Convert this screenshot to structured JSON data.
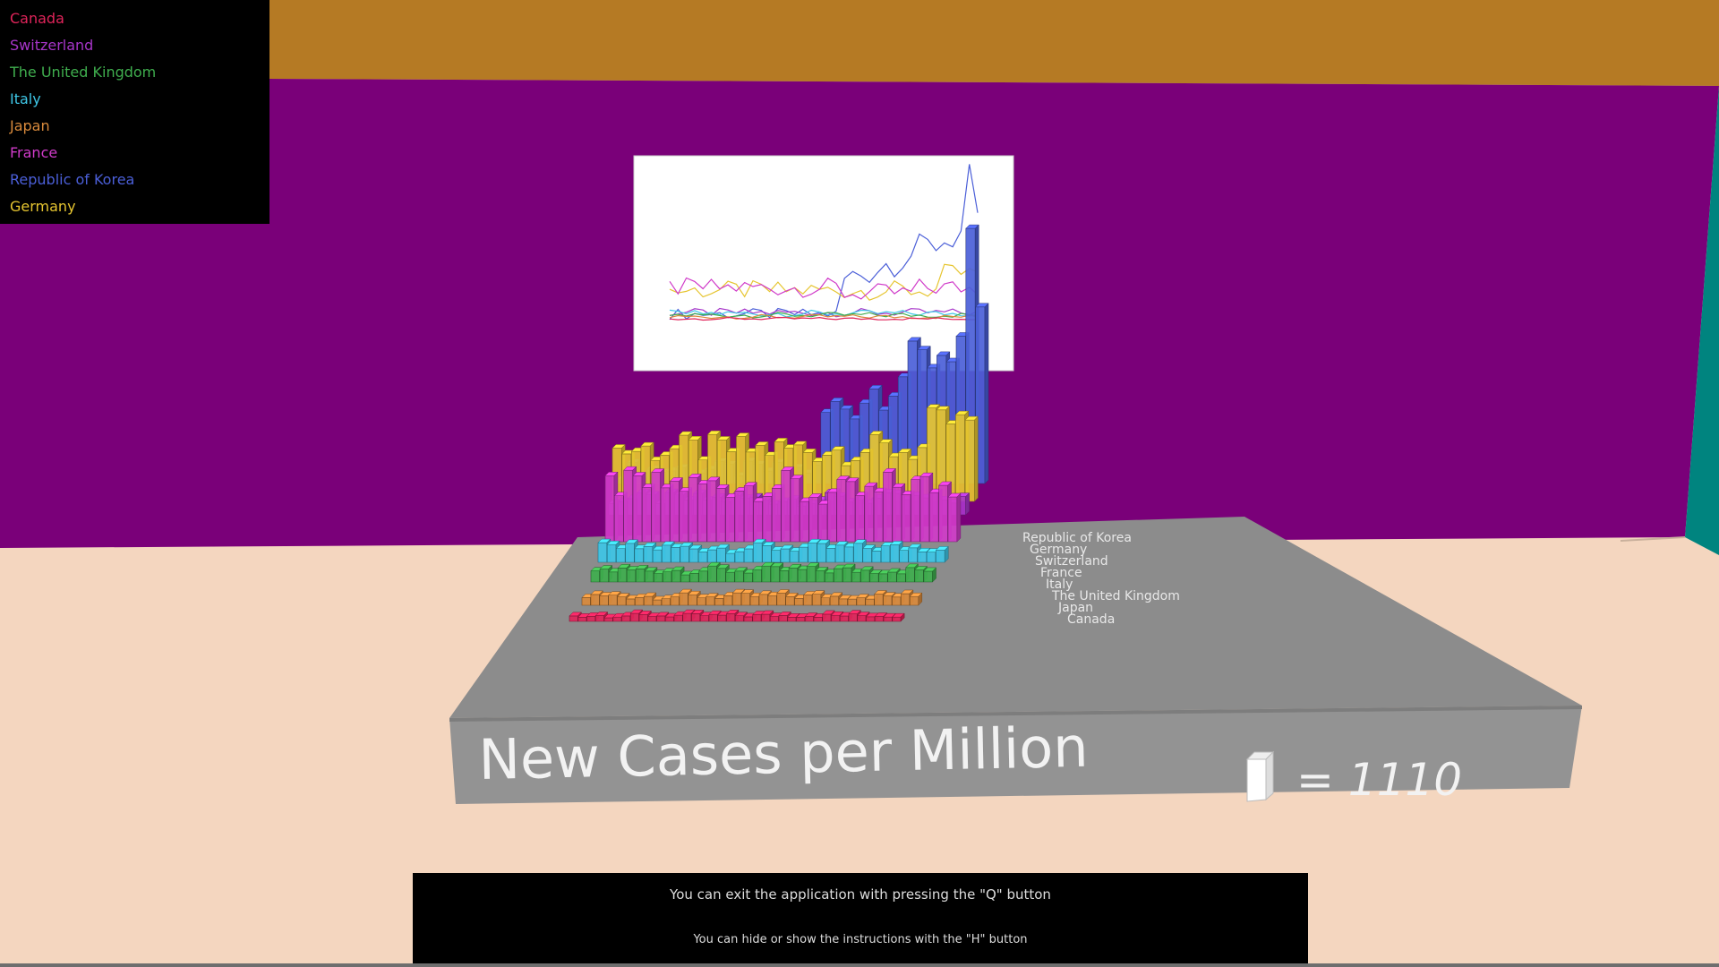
{
  "legend": {
    "items": [
      {
        "label": "Canada",
        "color": "#e0245a"
      },
      {
        "label": "Switzerland",
        "color": "#a735c9"
      },
      {
        "label": "The United Kingdom",
        "color": "#3fae4e"
      },
      {
        "label": "Italy",
        "color": "#3ec6e6"
      },
      {
        "label": "Japan",
        "color": "#d98a3c"
      },
      {
        "label": "France",
        "color": "#d03bc9"
      },
      {
        "label": "Republic of Korea",
        "color": "#4b5fd8"
      },
      {
        "label": "Germany",
        "color": "#e6c530"
      }
    ]
  },
  "platform": {
    "title": "New Cases per Million",
    "scale_value": "= 1110",
    "row_labels": [
      "Republic of Korea",
      "Germany",
      "Switzerland",
      "France",
      "Italy",
      "The United Kingdom",
      "Japan",
      "Canada"
    ]
  },
  "scene_colors": {
    "ceiling": "#b57a24",
    "back_wall": "#7a0079",
    "right_wall": "#00847f",
    "floor": "#f4d6bf",
    "platform_top": "#8c8c8c",
    "platform_front": "#939393"
  },
  "instructions": {
    "line1": "You can exit the application with pressing the \"Q\" button",
    "line2": "You can hide or show the instructions with the \"H\" button"
  }
}
